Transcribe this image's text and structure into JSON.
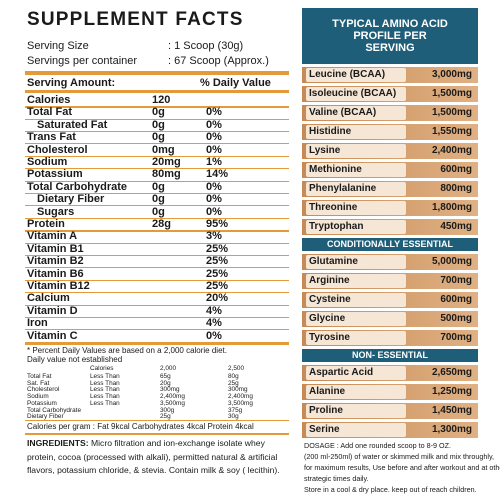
{
  "facts": {
    "title": "SUPPLEMENT FACTS",
    "serving_size": {
      "label": "Serving Size",
      "value": ": 1 Scoop (30g)"
    },
    "servings": {
      "label": "Servings per container",
      "value": ": 67 Scoop (Approx.)"
    },
    "columns": {
      "amount": "Serving Amount:",
      "dv": "% Daily Value"
    },
    "rows": [
      {
        "name": "Calories",
        "amount": "120"
      },
      {
        "name": "Total Fat",
        "amount": "0g",
        "dv": "0%"
      },
      {
        "name": "Saturated Fat",
        "amount": "0g",
        "dv": "0%"
      },
      {
        "name": "Trans Fat",
        "amount": "0g",
        "dv": "0%"
      },
      {
        "name": "Cholesterol",
        "amount": "0mg",
        "dv": "0%"
      },
      {
        "name": "Sodium",
        "amount": "20mg",
        "dv": "1%"
      },
      {
        "name": "Potassium",
        "amount": "80mg",
        "dv": "14%"
      },
      {
        "name": "Total Carbohydrate",
        "amount": "0g",
        "dv": "0%"
      },
      {
        "name": "Dietary Fiber",
        "amount": "0g",
        "dv": "0%"
      },
      {
        "name": "Sugars",
        "amount": "0g",
        "dv": "0%"
      },
      {
        "name": "Protein",
        "amount": "28g",
        "dv": "95%"
      },
      {
        "name": "Vitamin A",
        "dv": "3%"
      },
      {
        "name": "Vitamin B1",
        "dv": "25%"
      },
      {
        "name": "Vitamin B2",
        "dv": "25%"
      },
      {
        "name": "Vitamin B6",
        "dv": "25%"
      },
      {
        "name": "Vitamin B12",
        "dv": "25%"
      },
      {
        "name": "Calcium",
        "dv": "20%"
      },
      {
        "name": "Vitamin D",
        "dv": "4%"
      },
      {
        "name": "Iron",
        "dv": "4%"
      },
      {
        "name": "Vitamin C",
        "dv": "0%"
      }
    ],
    "footnote": [
      "* Percent Daily Values are based on a 2,000 calorie diet.",
      "Daily value not established"
    ],
    "dv_table": {
      "header": [
        "Calories",
        "2,000",
        "2,500"
      ],
      "rows": [
        {
          "name": "Total Fat",
          "limit": "Less Than",
          "a": "65g",
          "b": "80g"
        },
        {
          "name": "Sat. Fat",
          "limit": "Less Than",
          "a": "20g",
          "b": "25g"
        },
        {
          "name": "Cholesterol",
          "limit": "Less Than",
          "a": "300mg",
          "b": "300mg"
        },
        {
          "name": "Sodium",
          "limit": "Less Than",
          "a": "2,400mg",
          "b": "2,400mg"
        },
        {
          "name": "Potassium",
          "limit": "Less Than",
          "a": "3,500mg",
          "b": "3,500mg"
        },
        {
          "name": "Total Carbohydrate",
          "a": "300g",
          "b": "375g"
        },
        {
          "name": "Dietary Fiber",
          "a": "25g",
          "b": "30g"
        }
      ]
    },
    "calories_per_gram": "Calories per gram : Fat 9kcal  Carbohydrates 4kcal  Protein 4kcal",
    "ingredients": {
      "label": "INGREDIENTS:",
      "text": "Micro filtration and ion-exchange isolate whey protein, cocoa (processed with alkali), permitted natural & artificial flavors, potassium chloride, & stevia. Contain milk & soy ( lecithin)."
    }
  },
  "amino": {
    "title": "TYPICAL AMINO ACID PROFILE PER SERVING",
    "groups": [
      {
        "items": [
          {
            "name": "Leucine (BCAA)",
            "value": "3,000mg"
          },
          {
            "name": "Isoleucine (BCAA)",
            "value": "1,500mg"
          },
          {
            "name": "Valine (BCAA)",
            "value": "1,500mg"
          },
          {
            "name": "Histidine",
            "value": "1,550mg"
          },
          {
            "name": "Lysine",
            "value": "2,400mg"
          },
          {
            "name": "Methionine",
            "value": "600mg"
          },
          {
            "name": "Phenylalanine",
            "value": "800mg"
          },
          {
            "name": "Threonine",
            "value": "1,800mg"
          },
          {
            "name": "Tryptophan",
            "value": "450mg"
          }
        ]
      },
      {
        "heading": "CONDITIONALLY ESSENTIAL",
        "items": [
          {
            "name": "Glutamine",
            "value": "5,000mg"
          },
          {
            "name": "Arginine",
            "value": "700mg"
          },
          {
            "name": "Cysteine",
            "value": "600mg"
          },
          {
            "name": "Glycine",
            "value": "500mg"
          },
          {
            "name": "Tyrosine",
            "value": "700mg"
          }
        ]
      },
      {
        "heading": "NON- ESSENTIAL",
        "items": [
          {
            "name": "Aspartic Acid",
            "value": "2,650mg"
          },
          {
            "name": "Alanine",
            "value": "1,250mg"
          },
          {
            "name": "Proline",
            "value": "1,450mg"
          },
          {
            "name": "Serine",
            "value": "1,300mg"
          }
        ]
      }
    ],
    "dosage": [
      "DOSAGE : Add one rounded scoop to 8-9 OZ.",
      "(200 ml-250ml) of water or skimmed milk and mix throughly,",
      "for maximum results, Use before and after workout and at other",
      "strategic times daily.",
      "Store in a cool & dry place. keep out of reach children."
    ]
  }
}
